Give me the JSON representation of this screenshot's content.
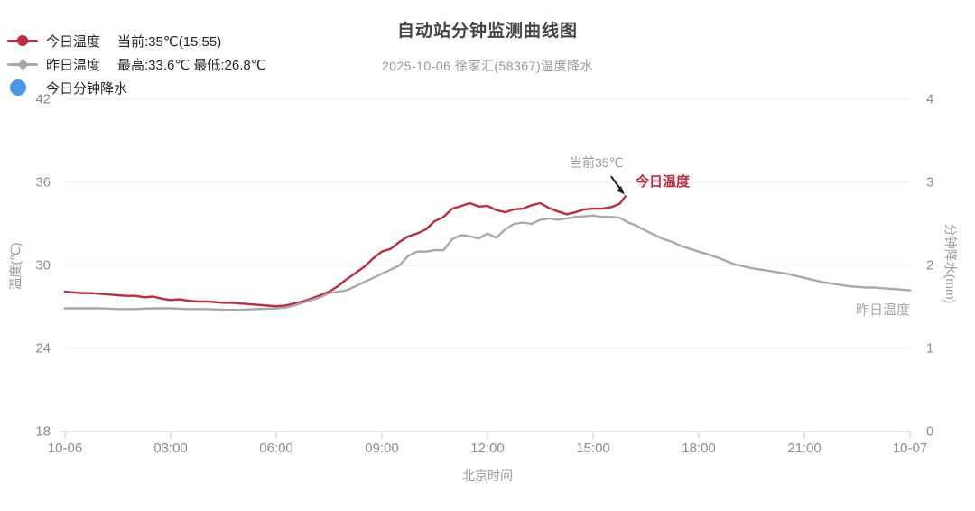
{
  "header": {
    "title": "自动站分钟监测曲线图",
    "subtitle": "2025-10-06 徐家汇(58367)温度降水"
  },
  "legend": {
    "items": [
      {
        "label": "今日温度",
        "detail": "当前:35℃(15:55)",
        "color": "#c2293d",
        "marker": "line-circle"
      },
      {
        "label": "昨日温度",
        "detail": "最高:33.6℃ 最低:26.8℃",
        "color": "#a8a8a8",
        "marker": "line-diamond"
      },
      {
        "label": "今日分钟降水",
        "detail": "",
        "color": "#4a96e8",
        "marker": "circle"
      }
    ]
  },
  "annotations": {
    "current_label": "当前35℃",
    "today_end_label": "今日温度",
    "yesterday_end_label": "昨日温度"
  },
  "colors": {
    "today_line": "#c2293d",
    "yesterday_line": "#a8a8a8",
    "rain_marker": "#4a96e8",
    "grid": "#e9e9e9",
    "axis_line": "#cccccc",
    "arrow": "#1a1a1a"
  },
  "chart_data": {
    "type": "line",
    "title": "自动站分钟监测曲线图",
    "subtitle": "2025-10-06 徐家汇(58367)温度降水",
    "xlabel": "北京时间",
    "ylabel_left": "温度(℃)",
    "ylabel_right": "分钟降水(mm)",
    "x_ticks": [
      "10-06",
      "03:00",
      "06:00",
      "09:00",
      "12:00",
      "15:00",
      "18:00",
      "21:00",
      "10-07"
    ],
    "x_range_hours": [
      0,
      24
    ],
    "y_left_ticks": [
      42,
      36,
      30,
      24,
      18
    ],
    "y_left_range": [
      18,
      42
    ],
    "y_right_ticks": [
      4,
      3,
      2,
      1,
      0
    ],
    "y_right_range": [
      0,
      4
    ],
    "grid": "horizontal-only",
    "legend_position": "top-left",
    "series": [
      {
        "name": "今日温度",
        "axis": "left",
        "color": "#c2293d",
        "current": "35℃(15:55)",
        "points": [
          [
            0,
            28.1
          ],
          [
            0.25,
            28.05
          ],
          [
            0.5,
            28.0
          ],
          [
            0.75,
            28.0
          ],
          [
            1,
            27.95
          ],
          [
            1.25,
            27.9
          ],
          [
            1.5,
            27.85
          ],
          [
            1.75,
            27.8
          ],
          [
            2,
            27.8
          ],
          [
            2.25,
            27.7
          ],
          [
            2.5,
            27.75
          ],
          [
            2.75,
            27.6
          ],
          [
            3,
            27.5
          ],
          [
            3.25,
            27.55
          ],
          [
            3.5,
            27.45
          ],
          [
            3.75,
            27.4
          ],
          [
            4,
            27.4
          ],
          [
            4.25,
            27.35
          ],
          [
            4.5,
            27.3
          ],
          [
            4.75,
            27.3
          ],
          [
            5,
            27.25
          ],
          [
            5.25,
            27.2
          ],
          [
            5.5,
            27.15
          ],
          [
            5.75,
            27.1
          ],
          [
            6,
            27.05
          ],
          [
            6.25,
            27.1
          ],
          [
            6.5,
            27.25
          ],
          [
            6.75,
            27.4
          ],
          [
            7,
            27.6
          ],
          [
            7.25,
            27.85
          ],
          [
            7.5,
            28.1
          ],
          [
            7.75,
            28.5
          ],
          [
            8,
            29.0
          ],
          [
            8.25,
            29.45
          ],
          [
            8.5,
            29.9
          ],
          [
            8.75,
            30.5
          ],
          [
            9,
            31.0
          ],
          [
            9.25,
            31.2
          ],
          [
            9.5,
            31.7
          ],
          [
            9.75,
            32.1
          ],
          [
            10,
            32.3
          ],
          [
            10.25,
            32.6
          ],
          [
            10.5,
            33.2
          ],
          [
            10.75,
            33.5
          ],
          [
            11,
            34.1
          ],
          [
            11.25,
            34.3
          ],
          [
            11.5,
            34.5
          ],
          [
            11.75,
            34.25
          ],
          [
            12,
            34.3
          ],
          [
            12.25,
            34.0
          ],
          [
            12.5,
            33.85
          ],
          [
            12.75,
            34.05
          ],
          [
            13,
            34.1
          ],
          [
            13.25,
            34.35
          ],
          [
            13.5,
            34.5
          ],
          [
            13.75,
            34.15
          ],
          [
            14,
            33.9
          ],
          [
            14.25,
            33.7
          ],
          [
            14.5,
            33.85
          ],
          [
            14.75,
            34.05
          ],
          [
            15,
            34.1
          ],
          [
            15.25,
            34.1
          ],
          [
            15.5,
            34.2
          ],
          [
            15.75,
            34.45
          ],
          [
            15.92,
            35.0
          ]
        ]
      },
      {
        "name": "昨日温度",
        "axis": "left",
        "color": "#a8a8a8",
        "max": 33.6,
        "min": 26.8,
        "points": [
          [
            0,
            26.9
          ],
          [
            0.5,
            26.9
          ],
          [
            1,
            26.9
          ],
          [
            1.5,
            26.85
          ],
          [
            2,
            26.85
          ],
          [
            2.5,
            26.9
          ],
          [
            3,
            26.9
          ],
          [
            3.5,
            26.85
          ],
          [
            4,
            26.85
          ],
          [
            4.5,
            26.8
          ],
          [
            5,
            26.8
          ],
          [
            5.5,
            26.85
          ],
          [
            6,
            26.9
          ],
          [
            6.25,
            26.95
          ],
          [
            6.5,
            27.1
          ],
          [
            6.75,
            27.3
          ],
          [
            7,
            27.5
          ],
          [
            7.25,
            27.7
          ],
          [
            7.5,
            28.0
          ],
          [
            7.75,
            28.1
          ],
          [
            8,
            28.2
          ],
          [
            8.25,
            28.5
          ],
          [
            8.5,
            28.8
          ],
          [
            8.75,
            29.1
          ],
          [
            9,
            29.4
          ],
          [
            9.25,
            29.7
          ],
          [
            9.5,
            30.0
          ],
          [
            9.75,
            30.7
          ],
          [
            10,
            31.0
          ],
          [
            10.25,
            31.0
          ],
          [
            10.5,
            31.1
          ],
          [
            10.75,
            31.1
          ],
          [
            11,
            31.9
          ],
          [
            11.25,
            32.2
          ],
          [
            11.5,
            32.1
          ],
          [
            11.75,
            31.95
          ],
          [
            12,
            32.3
          ],
          [
            12.25,
            32.0
          ],
          [
            12.5,
            32.6
          ],
          [
            12.75,
            33.0
          ],
          [
            13,
            33.1
          ],
          [
            13.25,
            33.0
          ],
          [
            13.5,
            33.3
          ],
          [
            13.75,
            33.4
          ],
          [
            14,
            33.3
          ],
          [
            14.25,
            33.4
          ],
          [
            14.5,
            33.5
          ],
          [
            14.75,
            33.55
          ],
          [
            15,
            33.6
          ],
          [
            15.25,
            33.5
          ],
          [
            15.5,
            33.5
          ],
          [
            15.75,
            33.45
          ],
          [
            16,
            33.1
          ],
          [
            16.25,
            32.85
          ],
          [
            16.5,
            32.5
          ],
          [
            16.75,
            32.2
          ],
          [
            17,
            31.9
          ],
          [
            17.25,
            31.7
          ],
          [
            17.5,
            31.4
          ],
          [
            17.75,
            31.2
          ],
          [
            18,
            31.0
          ],
          [
            18.25,
            30.8
          ],
          [
            18.5,
            30.6
          ],
          [
            18.75,
            30.35
          ],
          [
            19,
            30.1
          ],
          [
            19.25,
            29.95
          ],
          [
            19.5,
            29.8
          ],
          [
            19.75,
            29.7
          ],
          [
            20,
            29.6
          ],
          [
            20.25,
            29.5
          ],
          [
            20.5,
            29.4
          ],
          [
            20.75,
            29.25
          ],
          [
            21,
            29.1
          ],
          [
            21.25,
            28.95
          ],
          [
            21.5,
            28.8
          ],
          [
            21.75,
            28.7
          ],
          [
            22,
            28.6
          ],
          [
            22.25,
            28.5
          ],
          [
            22.5,
            28.45
          ],
          [
            22.75,
            28.4
          ],
          [
            23,
            28.4
          ],
          [
            23.25,
            28.35
          ],
          [
            23.5,
            28.3
          ],
          [
            23.75,
            28.25
          ],
          [
            24,
            28.2
          ]
        ]
      },
      {
        "name": "今日分钟降水",
        "axis": "right",
        "color": "#4a96e8",
        "points": []
      }
    ],
    "annotation": {
      "text": "当前35℃",
      "arrow_to_hour": 15.92,
      "arrow_to_value": 35.0
    }
  }
}
